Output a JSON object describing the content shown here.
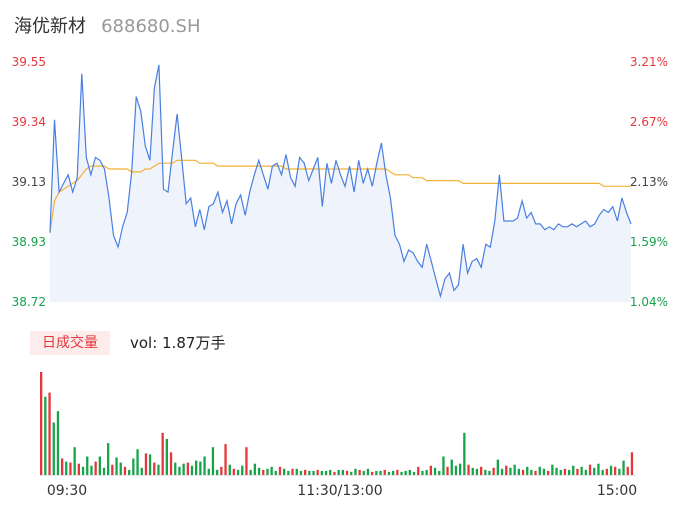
{
  "header": {
    "name": "海优新材",
    "code": "688680.SH"
  },
  "volume_panel": {
    "badge": "日成交量",
    "vol_text": "vol: 1.87万手"
  },
  "colors": {
    "price_line": "#4a7fe0",
    "avg_line": "#f2b233",
    "area_fill": "#eef3fc",
    "up": "#e5373b",
    "down": "#16a34a"
  },
  "chart_data": [
    {
      "type": "line",
      "title": "",
      "x_labels": [
        "09:30",
        "11:30/13:00",
        "15:00"
      ],
      "y_ticks_left": [
        "39.55",
        "39.34",
        "39.13",
        "38.93",
        "38.72"
      ],
      "y_ticks_right": [
        "3.21%",
        "2.67%",
        "2.13%",
        "1.59%",
        "1.04%"
      ],
      "ylim": [
        38.72,
        39.55
      ],
      "series": [
        {
          "name": "",
          "role": "price",
          "values": [
            38.96,
            39.35,
            39.1,
            39.13,
            39.16,
            39.1,
            39.15,
            39.51,
            39.22,
            39.16,
            39.22,
            39.21,
            39.18,
            39.08,
            38.95,
            38.91,
            38.98,
            39.03,
            39.17,
            39.43,
            39.38,
            39.26,
            39.21,
            39.46,
            39.54,
            39.11,
            39.1,
            39.24,
            39.37,
            39.22,
            39.06,
            39.08,
            38.98,
            39.04,
            38.97,
            39.05,
            39.06,
            39.1,
            39.03,
            39.07,
            38.99,
            39.06,
            39.09,
            39.02,
            39.1,
            39.16,
            39.21,
            39.16,
            39.11,
            39.19,
            39.2,
            39.16,
            39.23,
            39.15,
            39.12,
            39.22,
            39.2,
            39.14,
            39.18,
            39.22,
            39.05,
            39.2,
            39.13,
            39.21,
            39.16,
            39.12,
            39.19,
            39.1,
            39.21,
            39.13,
            39.18,
            39.12,
            39.2,
            39.27,
            39.16,
            39.08,
            38.95,
            38.92,
            38.86,
            38.9,
            38.89,
            38.86,
            38.84,
            38.92,
            38.86,
            38.8,
            38.74,
            38.8,
            38.82,
            38.76,
            38.78,
            38.92,
            38.82,
            38.86,
            38.87,
            38.84,
            38.92,
            38.91,
            39.0,
            39.16,
            39.0,
            39.0,
            39.0,
            39.01,
            39.07,
            39.01,
            39.03,
            38.99,
            38.99,
            38.97,
            38.98,
            38.97,
            38.99,
            38.98,
            38.98,
            38.99,
            38.98,
            38.99,
            39.0,
            38.98,
            38.99,
            39.02,
            39.04,
            39.03,
            39.05,
            39.0,
            39.08,
            39.03,
            38.99
          ]
        },
        {
          "name": "",
          "role": "average",
          "values": [
            38.96,
            39.07,
            39.1,
            39.11,
            39.12,
            39.13,
            39.14,
            39.16,
            39.18,
            39.19,
            39.19,
            39.19,
            39.19,
            39.18,
            39.18,
            39.18,
            39.18,
            39.18,
            39.17,
            39.17,
            39.17,
            39.18,
            39.18,
            39.19,
            39.2,
            39.2,
            39.2,
            39.2,
            39.21,
            39.21,
            39.21,
            39.21,
            39.21,
            39.2,
            39.2,
            39.2,
            39.2,
            39.19,
            39.19,
            39.19,
            39.19,
            39.19,
            39.19,
            39.19,
            39.19,
            39.19,
            39.19,
            39.19,
            39.19,
            39.19,
            39.19,
            39.19,
            39.18,
            39.18,
            39.18,
            39.18,
            39.18,
            39.18,
            39.18,
            39.18,
            39.18,
            39.18,
            39.18,
            39.18,
            39.18,
            39.18,
            39.18,
            39.18,
            39.18,
            39.18,
            39.18,
            39.18,
            39.18,
            39.18,
            39.18,
            39.17,
            39.16,
            39.16,
            39.16,
            39.16,
            39.15,
            39.15,
            39.15,
            39.14,
            39.14,
            39.14,
            39.14,
            39.14,
            39.14,
            39.14,
            39.14,
            39.13,
            39.13,
            39.13,
            39.13,
            39.13,
            39.13,
            39.13,
            39.13,
            39.13,
            39.13,
            39.13,
            39.13,
            39.13,
            39.13,
            39.13,
            39.13,
            39.13,
            39.13,
            39.13,
            39.13,
            39.13,
            39.13,
            39.13,
            39.13,
            39.13,
            39.13,
            39.13,
            39.13,
            39.13,
            39.13,
            39.13,
            39.12,
            39.12,
            39.12,
            39.12,
            39.12,
            39.12,
            39.12
          ]
        }
      ]
    },
    {
      "type": "bar",
      "title": "",
      "values": [
        100,
        76,
        80,
        51,
        62,
        16,
        13,
        12,
        27,
        11,
        8,
        18,
        9,
        13,
        18,
        7,
        31,
        10,
        17,
        12,
        8,
        5,
        16,
        25,
        7,
        21,
        20,
        12,
        10,
        41,
        35,
        22,
        12,
        8,
        11,
        12,
        9,
        14,
        13,
        18,
        6,
        27,
        5,
        8,
        30,
        10,
        6,
        5,
        9,
        27,
        5,
        11,
        7,
        5,
        6,
        8,
        4,
        8,
        6,
        4,
        6,
        6,
        4,
        5,
        4,
        4,
        5,
        4,
        4,
        5,
        3,
        5,
        5,
        4,
        3,
        6,
        5,
        4,
        6,
        3,
        4,
        4,
        5,
        3,
        4,
        5,
        3,
        4,
        5,
        3,
        8,
        4,
        5,
        9,
        7,
        4,
        18,
        8,
        15,
        9,
        11,
        41,
        10,
        7,
        6,
        8,
        5,
        4,
        7,
        15,
        6,
        9,
        7,
        10,
        6,
        5,
        8,
        5,
        4,
        8,
        6,
        4,
        10,
        7,
        5,
        6,
        5,
        9,
        6,
        8,
        5,
        10,
        7,
        11,
        5,
        6,
        9,
        8,
        6,
        14,
        8,
        22
      ],
      "up": [
        true,
        false,
        true,
        false,
        false,
        true,
        false,
        true,
        false,
        true,
        false,
        false,
        false,
        true,
        false,
        false,
        false,
        true,
        false,
        false,
        true,
        false,
        false,
        false,
        false,
        true,
        false,
        true,
        false,
        true,
        false,
        true,
        false,
        false,
        false,
        true,
        false,
        false,
        false,
        false,
        false,
        false,
        false,
        true,
        true,
        false,
        true,
        false,
        false,
        true,
        false,
        false,
        false,
        true,
        false,
        false,
        false,
        true,
        false,
        false,
        true,
        false,
        false,
        true,
        false,
        false,
        true,
        false,
        false,
        false,
        true,
        false,
        false,
        true,
        false,
        false,
        true,
        false,
        false,
        true,
        false,
        false,
        true,
        false,
        false,
        true,
        false,
        false,
        false,
        false,
        true,
        false,
        false,
        true,
        false,
        false,
        false,
        true,
        false,
        false,
        false,
        false,
        true,
        false,
        false,
        true,
        false,
        false,
        true,
        false,
        false,
        true,
        false,
        false,
        false,
        true,
        false,
        false,
        true,
        false,
        false,
        true,
        false,
        false,
        false,
        true,
        false,
        false,
        true,
        false,
        false,
        true,
        false,
        false,
        false,
        true,
        false,
        true,
        false,
        false,
        true,
        true
      ]
    }
  ]
}
